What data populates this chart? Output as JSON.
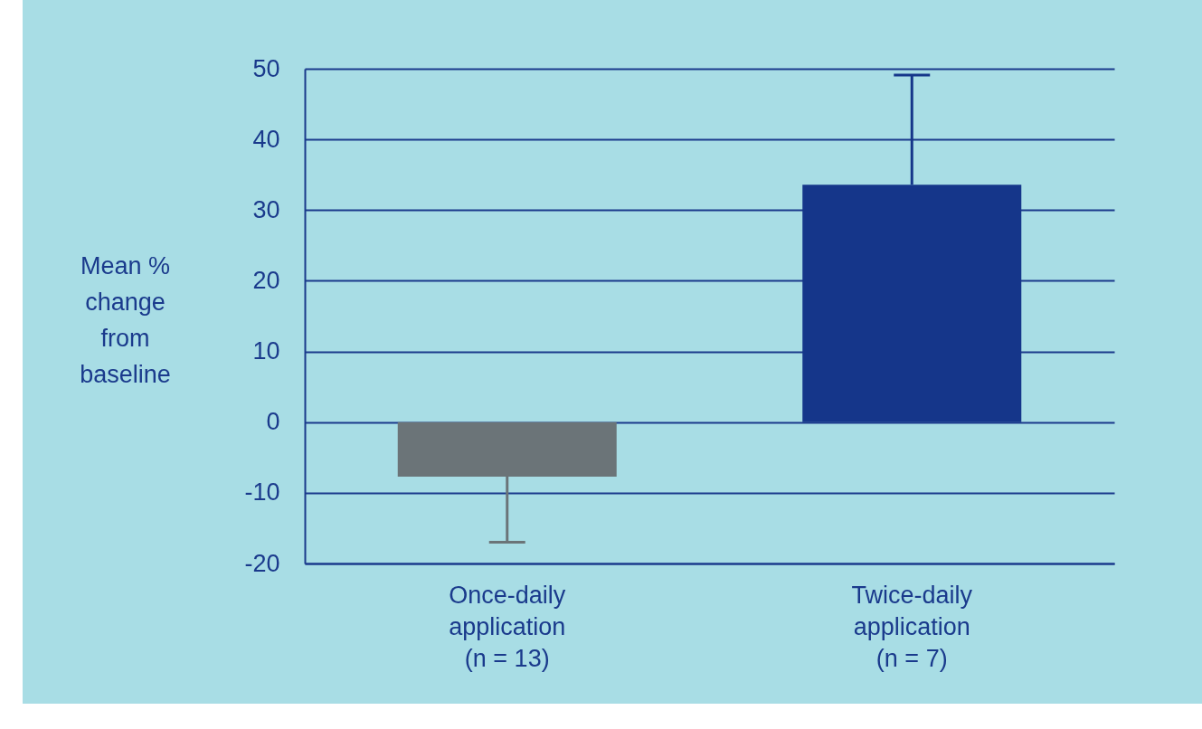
{
  "chart_data": {
    "type": "bar",
    "ylabel": "Mean %\nchange\nfrom\nbaseline",
    "categories": [
      "Once-daily\napplication\n(n = 13)",
      "Twice-daily\napplication\n(n = 7)"
    ],
    "values": [
      -7.7,
      33.6
    ],
    "colors": [
      "#6b7478",
      "#15368a"
    ],
    "errors": [
      [
        -17,
        -7.7
      ],
      [
        33.6,
        49.1
      ]
    ],
    "ylim": [
      -20,
      50
    ],
    "yticks": [
      -20,
      -10,
      0,
      10,
      20,
      30,
      40,
      50
    ],
    "grid": "y"
  }
}
